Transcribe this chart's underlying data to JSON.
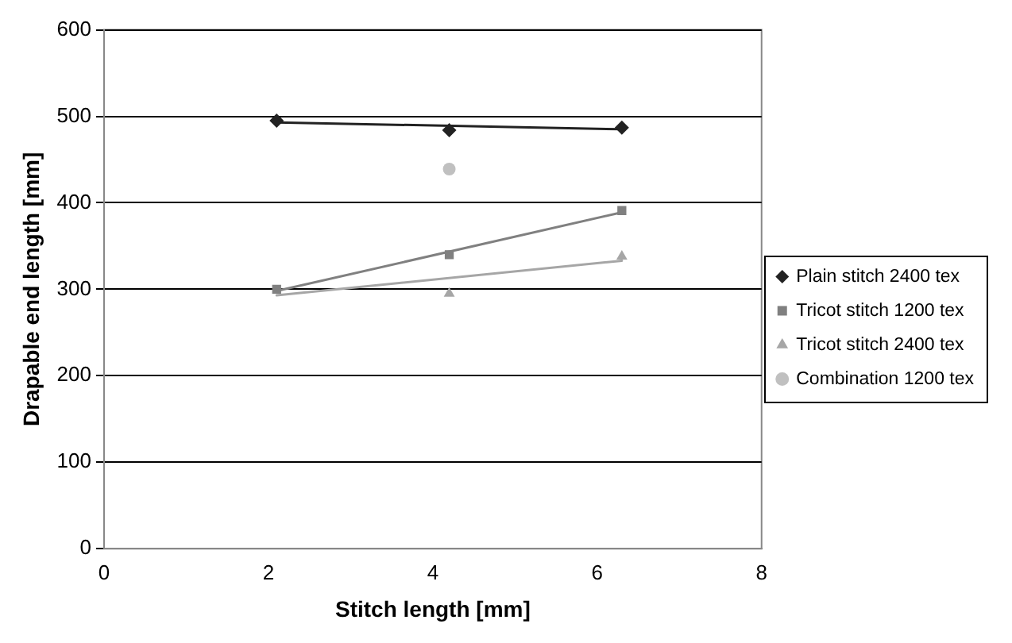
{
  "chart_data": {
    "type": "scatter",
    "xlabel": "Stitch length [mm]",
    "ylabel": "Drapable end length [mm]",
    "xlim": [
      0,
      8
    ],
    "xticks": [
      0,
      2,
      4,
      6,
      8
    ],
    "ylim": [
      0,
      600
    ],
    "yticks": [
      0,
      100,
      200,
      300,
      400,
      500,
      600
    ],
    "grid": "y",
    "legend": "right",
    "series": [
      {
        "name": "Plain stitch 2400 tex",
        "color": "#222222",
        "marker": "diamond",
        "x": [
          2.1,
          4.2,
          6.3
        ],
        "values": [
          495,
          484,
          487
        ]
      },
      {
        "name": "Tricot stitch 1200 tex",
        "color": "#808080",
        "marker": "square",
        "x": [
          2.1,
          4.2,
          6.3
        ],
        "values": [
          300,
          340,
          391
        ]
      },
      {
        "name": "Tricot stitch 2400 tex",
        "color": "#a6a6a6",
        "marker": "triangle",
        "x": [
          4.2,
          6.3
        ],
        "values": [
          295,
          338
        ]
      },
      {
        "name": "Combination 1200 tex",
        "color": "#c0c0c0",
        "marker": "circle",
        "x": [
          4.2
        ],
        "values": [
          439
        ]
      },
      {
        "type": "line",
        "color": "#222222",
        "marker": "none",
        "x": [
          2.1,
          6.3
        ],
        "values": [
          493,
          485
        ]
      },
      {
        "type": "line",
        "color": "#808080",
        "marker": "none",
        "x": [
          2.1,
          6.3
        ],
        "values": [
          298,
          389
        ]
      },
      {
        "type": "line",
        "color": "#a6a6a6",
        "marker": "none",
        "x": [
          2.1,
          6.3
        ],
        "values": [
          293,
          333
        ]
      }
    ]
  }
}
